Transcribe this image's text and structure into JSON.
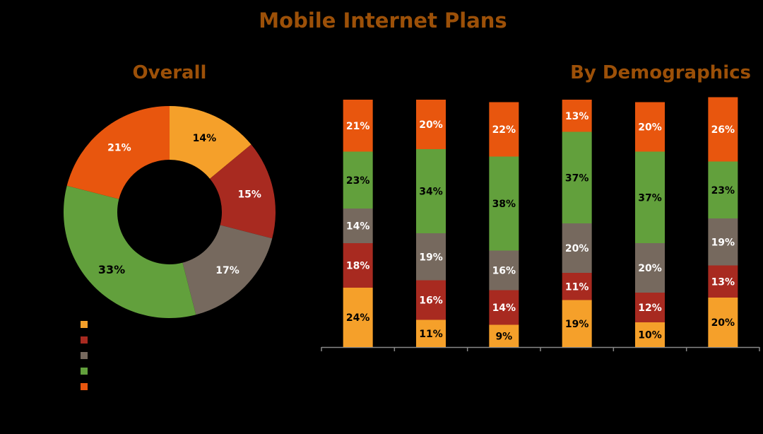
{
  "page": {
    "title": "Mobile Internet Plans"
  },
  "colors": {
    "background": "#000000",
    "title": "#9C5008",
    "series": [
      "#F5A02A",
      "#A82A20",
      "#76695E",
      "#62A03C",
      "#E8560E"
    ],
    "labelDark": "#000000",
    "labelLight": "#FFFFFF",
    "axis": "#888888"
  },
  "chart_data": [
    {
      "type": "pie",
      "variant": "donut",
      "title": "Overall",
      "labels": [
        "",
        "",
        "",
        "",
        ""
      ],
      "values": [
        14,
        15,
        17,
        33,
        21
      ],
      "value_labels": [
        "14%",
        "15%",
        "17%",
        "33%",
        "21%"
      ],
      "legend": {
        "placement": "bottom-left",
        "entries": [
          "",
          "",
          "",
          "",
          ""
        ]
      }
    },
    {
      "type": "bar",
      "stacked": true,
      "title": "By Demographics",
      "categories": [
        "",
        "",
        "",
        "",
        "",
        ""
      ],
      "ylim": [
        0,
        100
      ],
      "grid": false,
      "series": [
        {
          "values": [
            24,
            11,
            9,
            19,
            10,
            20
          ],
          "labels": [
            "24%",
            "11%",
            "9%",
            "19%",
            "10%",
            "20%"
          ]
        },
        {
          "values": [
            18,
            16,
            14,
            11,
            12,
            13
          ],
          "labels": [
            "18%",
            "16%",
            "14%",
            "11%",
            "12%",
            "13%"
          ]
        },
        {
          "values": [
            14,
            19,
            16,
            20,
            20,
            19
          ],
          "labels": [
            "14%",
            "19%",
            "16%",
            "20%",
            "20%",
            "19%"
          ]
        },
        {
          "values": [
            23,
            34,
            38,
            37,
            37,
            23
          ],
          "labels": [
            "23%",
            "34%",
            "38%",
            "37%",
            "37%",
            "23%"
          ]
        },
        {
          "values": [
            21,
            20,
            22,
            13,
            20,
            26
          ],
          "labels": [
            "21%",
            "20%",
            "22%",
            "13%",
            "20%",
            "26%"
          ]
        }
      ]
    }
  ]
}
